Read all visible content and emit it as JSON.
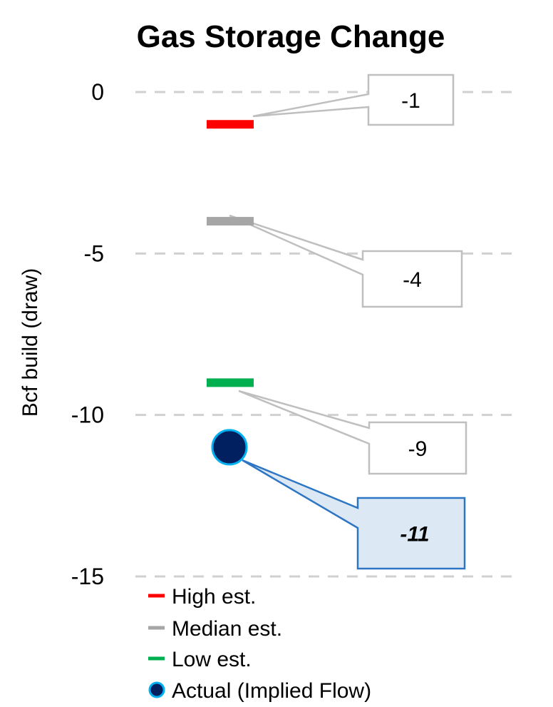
{
  "chart_data": {
    "type": "scatter",
    "title": "Gas Storage Change",
    "ylabel": "Bcf build (draw)",
    "xlabel": "",
    "ylim": [
      -15,
      0
    ],
    "yticks": [
      0,
      -5,
      -10,
      -15
    ],
    "ytick_labels": [
      "0",
      "-5",
      "-10",
      "-15"
    ],
    "grid": "horizontal dashed",
    "legend_placement": "bottom",
    "series": [
      {
        "name": "High est.",
        "value": -1,
        "label": "-1",
        "marker": "dash",
        "color": "#ff0000"
      },
      {
        "name": "Median est.",
        "value": -4,
        "label": "-4",
        "marker": "dash",
        "color": "#a6a6a6"
      },
      {
        "name": "Low est.",
        "value": -9,
        "label": "-9",
        "marker": "dash",
        "color": "#00b050"
      },
      {
        "name": "Actual (Implied Flow)",
        "value": -11,
        "label": "-11",
        "marker": "circle",
        "color": "#002060",
        "edge_color": "#00b0f0"
      }
    ]
  }
}
